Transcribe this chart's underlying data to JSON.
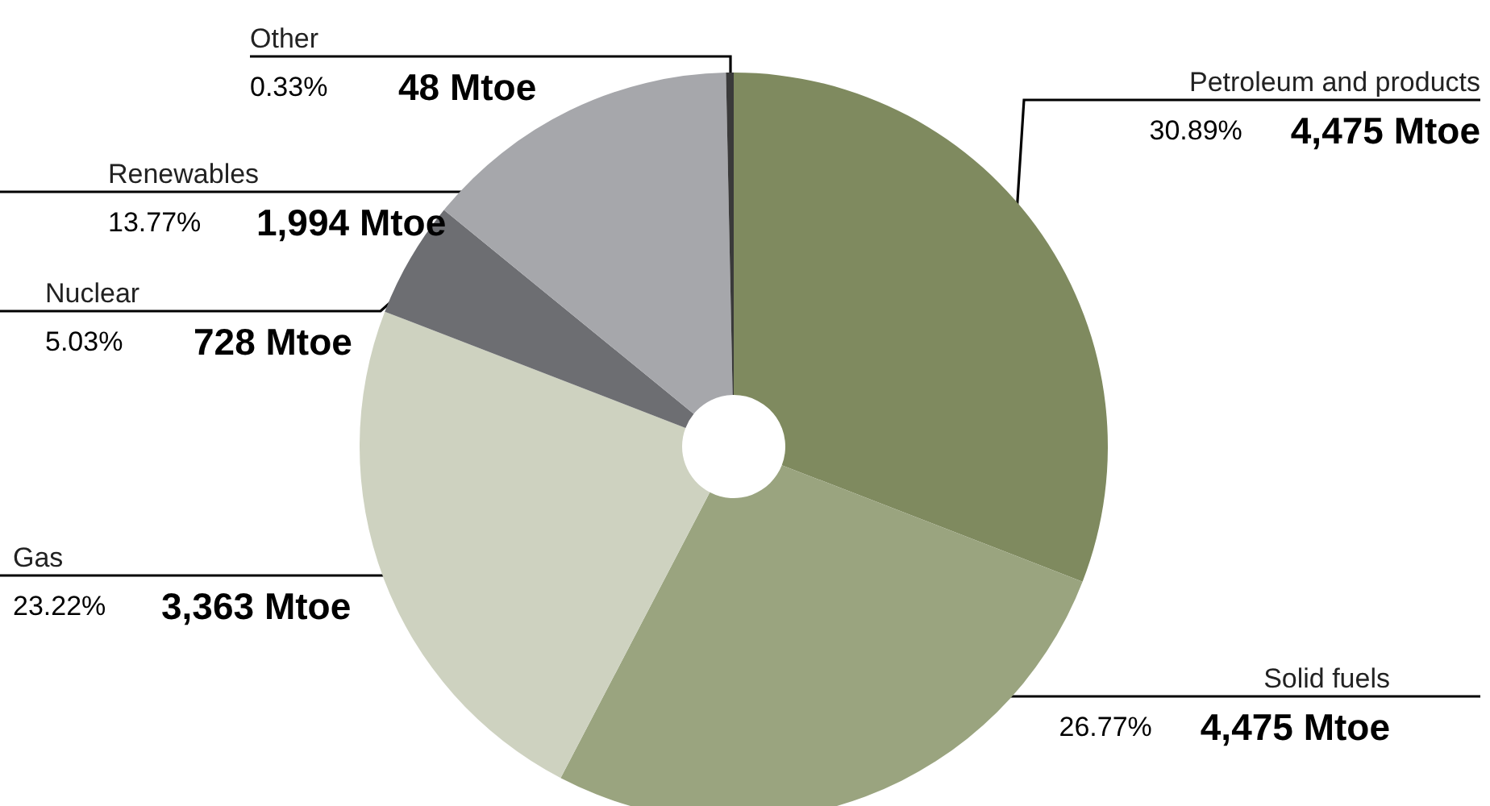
{
  "chart_data": {
    "type": "donut",
    "categories": [
      "Petroleum and products",
      "Solid fuels",
      "Gas",
      "Nuclear",
      "Renewables",
      "Other"
    ],
    "values": [
      30.89,
      26.77,
      23.22,
      5.03,
      13.77,
      0.33
    ],
    "value_labels": [
      "30.89%",
      "26.77%",
      "23.22%",
      "5.03%",
      "13.77%",
      "0.33%"
    ],
    "colors": [
      "#7f8a5f",
      "#9aa47f",
      "#ced2c0",
      "#6d6e72",
      "#a6a7ab",
      "#3a3a3a"
    ],
    "annotations": [
      {
        "text": "4,475 Mtoe",
        "x": "Petroleum and products"
      },
      {
        "text": "4,475 Mtoe",
        "x": "Solid fuels"
      },
      {
        "text": "3,363 Mtoe",
        "x": "Gas"
      },
      {
        "text": "728 Mtoe",
        "x": "Nuclear"
      },
      {
        "text": "1,994 Mtoe",
        "x": "Renewables"
      },
      {
        "text": "48 Mtoe",
        "x": "Other"
      }
    ]
  }
}
